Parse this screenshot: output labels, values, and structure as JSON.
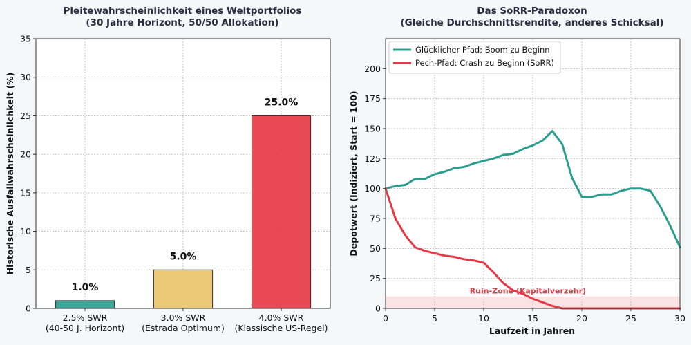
{
  "colors": {
    "teal": "#2a9d8f",
    "yellow": "#e9c46a",
    "red": "#e63946",
    "ruin_fill": "#fbe3e4",
    "background": "#f6f7f9"
  },
  "chart_data": [
    {
      "type": "bar",
      "title": "Pleitewahrscheinlichkeit eines Weltportfolios",
      "subtitle": "(30 Jahre Horizont, 50/50 Allokation)",
      "xlabel": "",
      "ylabel": "Historische Ausfallwahrscheinlichkeit (%)",
      "ylim": [
        0,
        35
      ],
      "yticks": [
        0,
        5,
        10,
        15,
        20,
        25,
        30,
        35
      ],
      "grid": true,
      "categories": [
        [
          "2.5% SWR",
          "(40-50 J. Horizont)"
        ],
        [
          "3.0% SWR",
          "(Estrada Optimum)"
        ],
        [
          "4.0% SWR",
          "(Klassische US-Regel)"
        ]
      ],
      "values": [
        1.0,
        5.0,
        25.0
      ],
      "data_labels": [
        "1.0%",
        "5.0%",
        "25.0%"
      ],
      "bar_colors": [
        "#2a9d8f",
        "#e9c46a",
        "#e63946"
      ]
    },
    {
      "type": "line",
      "title": "Das SoRR-Paradoxon",
      "subtitle": "(Gleiche Durchschnittsrendite, anderes Schicksal)",
      "xlabel": "Laufzeit in Jahren",
      "ylabel": "Depotwert (Indiziert, Start = 100)",
      "xlim": [
        0,
        30
      ],
      "ylim": [
        0,
        225
      ],
      "xticks": [
        0,
        5,
        10,
        15,
        20,
        25,
        30
      ],
      "yticks": [
        0,
        25,
        50,
        75,
        100,
        125,
        150,
        175,
        200
      ],
      "grid": true,
      "legend_position": "top-left",
      "x": [
        0,
        1,
        2,
        3,
        4,
        5,
        6,
        7,
        8,
        9,
        10,
        11,
        12,
        13,
        14,
        15,
        16,
        17,
        18,
        19,
        20,
        21,
        22,
        23,
        24,
        25,
        26,
        27,
        28,
        29,
        30
      ],
      "series": [
        {
          "name": "Glücklicher Pfad: Boom zu Beginn",
          "color": "#2a9d8f",
          "values": [
            100,
            102,
            103,
            108,
            108,
            112,
            114,
            117,
            118,
            121,
            123,
            125,
            128,
            129,
            133,
            136,
            140,
            148,
            137,
            109,
            93,
            93,
            95,
            95,
            98,
            100,
            100,
            98,
            85,
            69,
            51
          ]
        },
        {
          "name": "Pech-Pfad: Crash zu Beginn (SoRR)",
          "color": "#e63946",
          "values": [
            100,
            75,
            61,
            51,
            48,
            46,
            44,
            43,
            41,
            40,
            38,
            30,
            21,
            15,
            12,
            8,
            5,
            2,
            0,
            0,
            0,
            0,
            0,
            0,
            0,
            0,
            0,
            0,
            0,
            0,
            0
          ]
        }
      ],
      "annotation": {
        "text": "Ruin-Zone (Kapitalverzehr)",
        "y_range": [
          0,
          10
        ]
      }
    }
  ]
}
